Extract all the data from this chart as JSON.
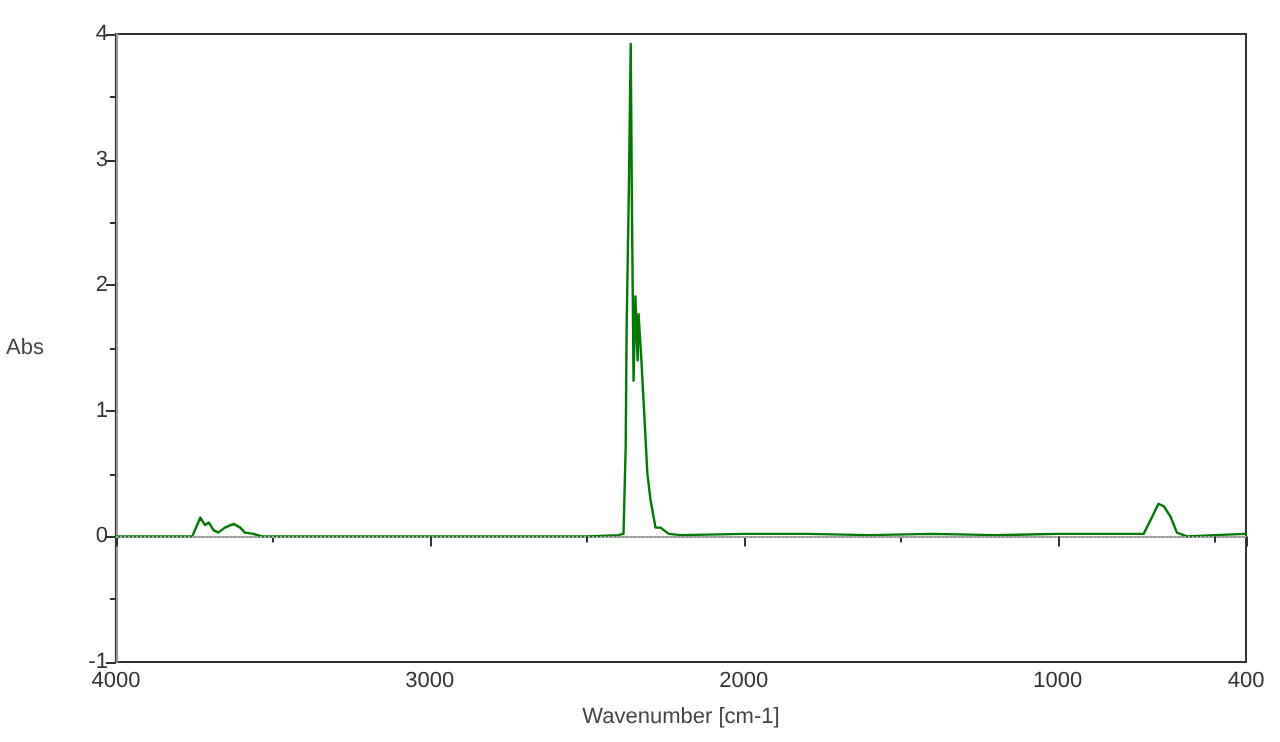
{
  "chart_data": {
    "type": "line",
    "xlabel": "Wavenumber [cm-1]",
    "ylabel": "Abs",
    "xlim": [
      4000,
      400
    ],
    "xticks": [
      4000,
      {
        "value": 3500,
        "label": null
      },
      3000,
      {
        "value": 2500,
        "label": null
      },
      2000,
      {
        "value": 1500,
        "label": null
      },
      1000,
      {
        "value": 500,
        "label": null
      },
      400
    ],
    "ylim": [
      -1,
      4
    ],
    "yticks": [
      -1,
      {
        "value": -0.5,
        "label": null
      },
      0,
      {
        "value": 0.5,
        "label": null
      },
      1,
      {
        "value": 1.5,
        "label": null
      },
      2,
      {
        "value": 2.5,
        "label": null
      },
      3,
      {
        "value": 3.5,
        "label": null
      },
      4
    ],
    "grid": false,
    "marker": "none",
    "line_style": "solid",
    "ref_lines": [
      {
        "axis": "y",
        "value": 0,
        "color": "#aaaaaa",
        "line_style": "dotted"
      }
    ],
    "series": [
      {
        "color": "#007a00",
        "x": [
          4000,
          3800,
          3757,
          3731,
          3716,
          3704,
          3689,
          3674,
          3653,
          3625,
          3604,
          3589,
          3562,
          3535,
          3200,
          3000,
          2700,
          2500,
          2400,
          2383,
          2376,
          2373,
          2366,
          2360,
          2356,
          2351,
          2345,
          2338,
          2335,
          2326,
          2317,
          2307,
          2297,
          2281,
          2265,
          2239,
          2200,
          2000,
          1800,
          1600,
          1400,
          1200,
          1000,
          800,
          726,
          698,
          679,
          662,
          641,
          620,
          588,
          500,
          400
        ],
        "values": [
          0,
          0,
          0,
          0.15,
          0.09,
          0.11,
          0.05,
          0.03,
          0.07,
          0.1,
          0.07,
          0.03,
          0.02,
          0,
          0,
          0,
          0,
          0,
          0.01,
          0.02,
          0.72,
          1.67,
          2.75,
          3.92,
          2.57,
          1.24,
          1.91,
          1.4,
          1.77,
          1.4,
          0.98,
          0.5,
          0.29,
          0.07,
          0.07,
          0.02,
          0.01,
          0.02,
          0.02,
          0.01,
          0.02,
          0.01,
          0.02,
          0.02,
          0.02,
          0.16,
          0.26,
          0.24,
          0.16,
          0.03,
          0,
          0.01,
          0.02
        ]
      }
    ]
  }
}
